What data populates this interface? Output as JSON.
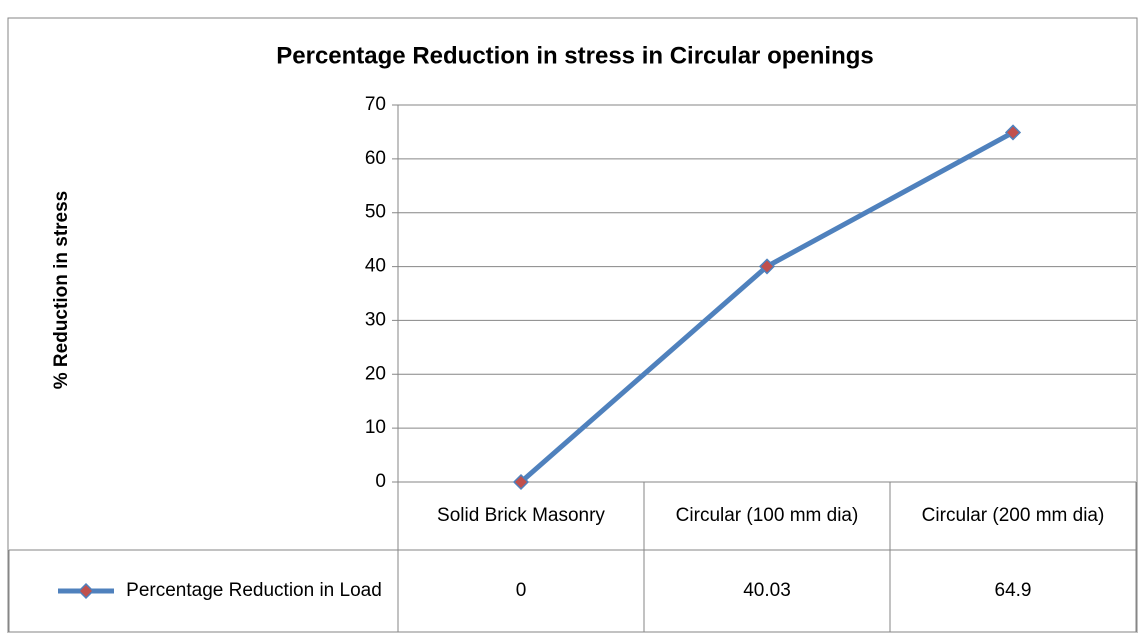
{
  "chart_data": {
    "type": "line",
    "title": "Percentage Reduction in stress in Circular openings",
    "y_label": "% Reduction in  stress",
    "categories": [
      "Solid Brick Masonry",
      "Circular (100 mm dia)",
      "Circular (200 mm dia)"
    ],
    "series": [
      {
        "name": "Percentage Reduction in Load",
        "color": "#4f81bd",
        "marker_color": "#c0504d",
        "values": [
          0,
          40.03,
          64.9
        ]
      }
    ],
    "ylim": [
      0,
      70
    ],
    "yticks": [
      0,
      10,
      20,
      30,
      40,
      50,
      60,
      70
    ],
    "grid": true,
    "data_table": true
  }
}
